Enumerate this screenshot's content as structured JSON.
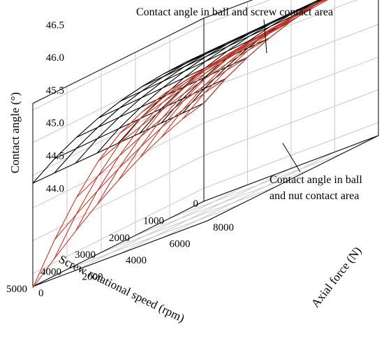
{
  "chart_data": {
    "type": "surface3d",
    "x_axis": {
      "label": "Screw rotational speed (rpm)",
      "range": [
        0,
        5000
      ],
      "ticks": [
        0,
        1000,
        2000,
        3000,
        4000,
        5000
      ]
    },
    "y_axis": {
      "label": "Axial force (N)",
      "range": [
        0,
        8000
      ],
      "ticks": [
        0,
        2000,
        4000,
        6000,
        8000
      ]
    },
    "z_axis": {
      "label": "Contact angle (°)",
      "range": [
        43.8,
        46.6
      ],
      "ticks": [
        "44.0",
        "44.5",
        "45.0",
        "45.5",
        "46.0",
        "46.5"
      ]
    },
    "grid": true,
    "series": [
      {
        "color": "#000000",
        "x": [
          0,
          625,
          1250,
          1875,
          2500,
          3125,
          3750,
          4375,
          5000
        ],
        "y": [
          0,
          1000,
          2000,
          3000,
          4000,
          5000,
          6000,
          7000,
          8000
        ],
        "z_description": "rises with axial force, nearly flat in speed",
        "z": [
          [
            45.3,
            45.55,
            45.75,
            45.92,
            46.05,
            46.15,
            46.22,
            46.27,
            46.3
          ],
          [
            45.31,
            45.56,
            45.76,
            45.93,
            46.06,
            46.16,
            46.23,
            46.28,
            46.31
          ],
          [
            45.32,
            45.57,
            45.77,
            45.94,
            46.07,
            46.17,
            46.24,
            46.29,
            46.32
          ],
          [
            45.33,
            45.58,
            45.78,
            45.95,
            46.08,
            46.18,
            46.25,
            46.3,
            46.33
          ],
          [
            45.34,
            45.59,
            45.79,
            45.96,
            46.09,
            46.19,
            46.26,
            46.31,
            46.34
          ],
          [
            45.35,
            45.6,
            45.8,
            45.97,
            46.1,
            46.2,
            46.27,
            46.32,
            46.35
          ],
          [
            45.36,
            45.61,
            45.81,
            45.98,
            46.11,
            46.21,
            46.28,
            46.33,
            46.36
          ],
          [
            45.37,
            45.62,
            45.82,
            45.99,
            46.12,
            46.22,
            46.29,
            46.34,
            46.37
          ],
          [
            45.38,
            45.63,
            45.83,
            46.0,
            46.13,
            46.23,
            46.3,
            46.35,
            46.38
          ]
        ]
      },
      {
        "color": "#c0392b",
        "x": [
          0,
          625,
          1250,
          1875,
          2500,
          3125,
          3750,
          4375,
          5000
        ],
        "y": [
          0,
          1000,
          2000,
          3000,
          4000,
          5000,
          6000,
          7000,
          8000
        ],
        "z_description": "rises with axial force, drops sharply with speed at low force",
        "z": [
          [
            45.3,
            45.55,
            45.75,
            45.92,
            46.05,
            46.15,
            46.22,
            46.27,
            46.3
          ],
          [
            45.22,
            45.49,
            45.71,
            45.89,
            46.03,
            46.13,
            46.21,
            46.26,
            46.29
          ],
          [
            45.1,
            45.4,
            45.65,
            45.85,
            46.0,
            46.11,
            46.19,
            46.24,
            46.27
          ],
          [
            44.95,
            45.29,
            45.57,
            45.79,
            45.96,
            46.08,
            46.17,
            46.22,
            46.25
          ],
          [
            44.77,
            45.15,
            45.47,
            45.72,
            45.91,
            46.04,
            46.14,
            46.2,
            46.23
          ],
          [
            44.56,
            44.99,
            45.35,
            45.64,
            45.85,
            46.0,
            46.11,
            46.17,
            46.21
          ],
          [
            44.32,
            44.81,
            45.22,
            45.55,
            45.79,
            45.95,
            46.07,
            46.14,
            46.18
          ],
          [
            44.06,
            44.61,
            45.07,
            45.45,
            45.72,
            45.9,
            46.03,
            46.11,
            46.15
          ],
          [
            43.78,
            44.39,
            44.91,
            45.34,
            45.64,
            45.84,
            45.99,
            46.07,
            46.12
          ]
        ]
      }
    ],
    "annotations": [
      {
        "text": "Contact angle in ball and screw contact area"
      },
      {
        "lines": [
          "Contact angle in ball",
          "and nut contact area"
        ]
      }
    ]
  }
}
